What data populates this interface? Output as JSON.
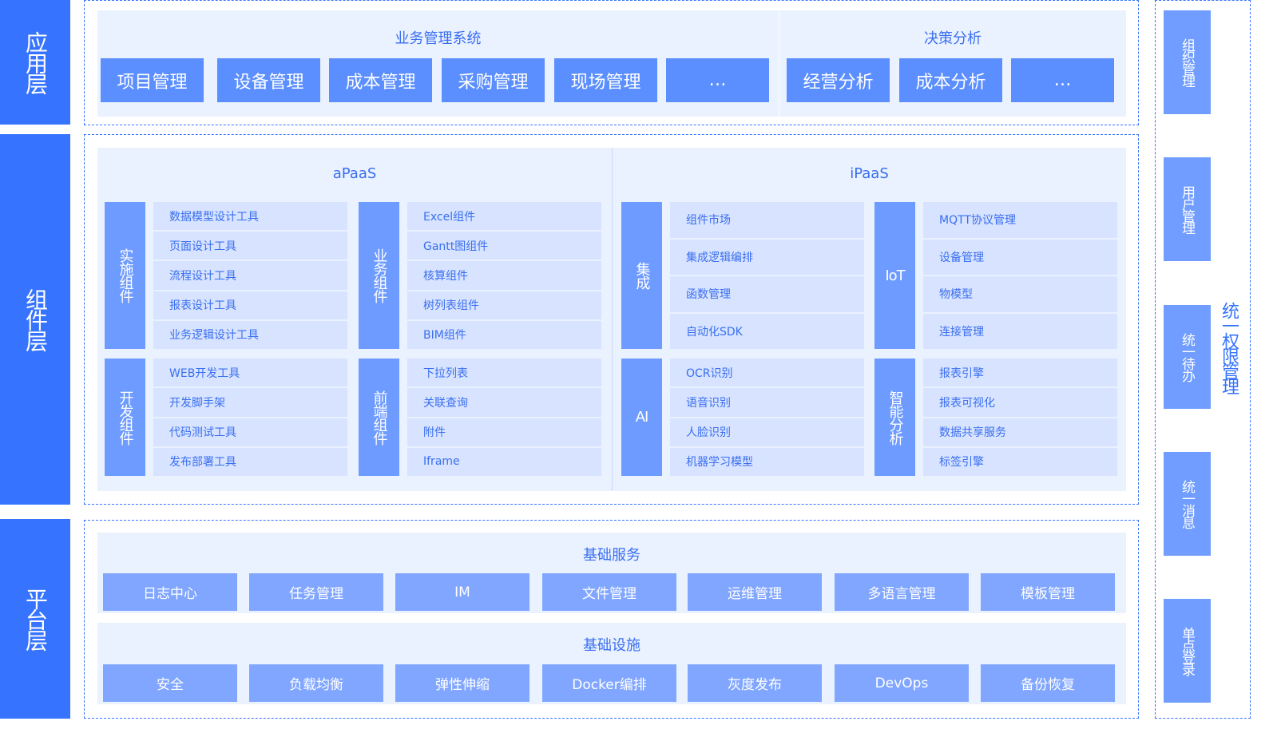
{
  "layers": [
    "应用层",
    "组件层",
    "平台层"
  ],
  "app": {
    "business_title": "业务管理系统",
    "business_items": [
      "项目管理",
      "设备管理",
      "成本管理",
      "采购管理",
      "现场管理",
      "…"
    ],
    "decision_title": "决策分析",
    "decision_items": [
      "经营分析",
      "成本分析",
      "…"
    ]
  },
  "component": {
    "apaas_title": "aPaaS",
    "ipaas_title": "iPaaS",
    "groups": [
      {
        "label": "实施组件",
        "items": [
          "数据模型设计工具",
          "页面设计工具",
          "流程设计工具",
          "报表设计工具",
          "业务逻辑设计工具"
        ]
      },
      {
        "label": "业务组件",
        "items": [
          "Excel组件",
          "Gantt图组件",
          "核算组件",
          "树列表组件",
          "BIM组件"
        ]
      },
      {
        "label": "开发组件",
        "items": [
          "WEB开发工具",
          "开发脚手架",
          "代码测试工具",
          "发布部署工具"
        ]
      },
      {
        "label": "前端组件",
        "items": [
          "下拉列表",
          "关联查询",
          "附件",
          "Iframe"
        ]
      },
      {
        "label": "集成",
        "items": [
          "组件市场",
          "集成逻辑编排",
          "函数管理",
          "自动化SDK"
        ]
      },
      {
        "label": "IoT",
        "items": [
          "MQTT协议管理",
          "设备管理",
          "物模型",
          "连接管理"
        ]
      },
      {
        "label": "AI",
        "items": [
          "OCR识别",
          "语音识别",
          "人脸识别",
          "机器学习模型"
        ]
      },
      {
        "label": "智能分析",
        "items": [
          "报表引擎",
          "报表可视化",
          "数据共享服务",
          "标签引擎"
        ]
      }
    ]
  },
  "platform": {
    "services_title": "基础服务",
    "services": [
      "日志中心",
      "任务管理",
      "IM",
      "文件管理",
      "运维管理",
      "多语言管理",
      "模板管理"
    ],
    "infra_title": "基础设施",
    "infra": [
      "安全",
      "负载均衡",
      "弹性伸缩",
      "Docker编排",
      "灰度发布",
      "DevOps",
      "备份恢复"
    ]
  },
  "permission": {
    "title": "统一权限管理",
    "items": [
      "组织管理",
      "用户管理",
      "统一待办",
      "统一消息",
      "单点登录"
    ]
  },
  "colors": {
    "layer": "#3674FF",
    "app_button": "#5B8EFF",
    "group": "#6E9BFF",
    "item": "#D7E3FF",
    "panel": "#EAF1FF",
    "platform_button": "#80A6FF",
    "text": "#3A6FF0"
  }
}
